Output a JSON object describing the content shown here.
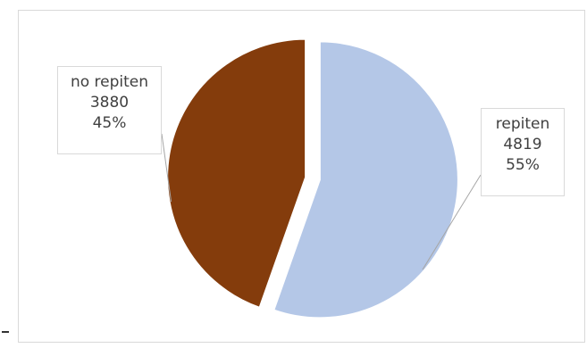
{
  "chart_data": {
    "type": "pie",
    "title": "",
    "categories": [
      "repiten",
      "no repiten"
    ],
    "values": [
      4819,
      3880
    ],
    "percent_labels": [
      "55%",
      "45%"
    ],
    "value_labels": [
      "4819",
      "3880"
    ],
    "colors": [
      "#b4c7e7",
      "#843c0c"
    ],
    "exploded": true,
    "legend": "none",
    "label_style": "callout"
  }
}
